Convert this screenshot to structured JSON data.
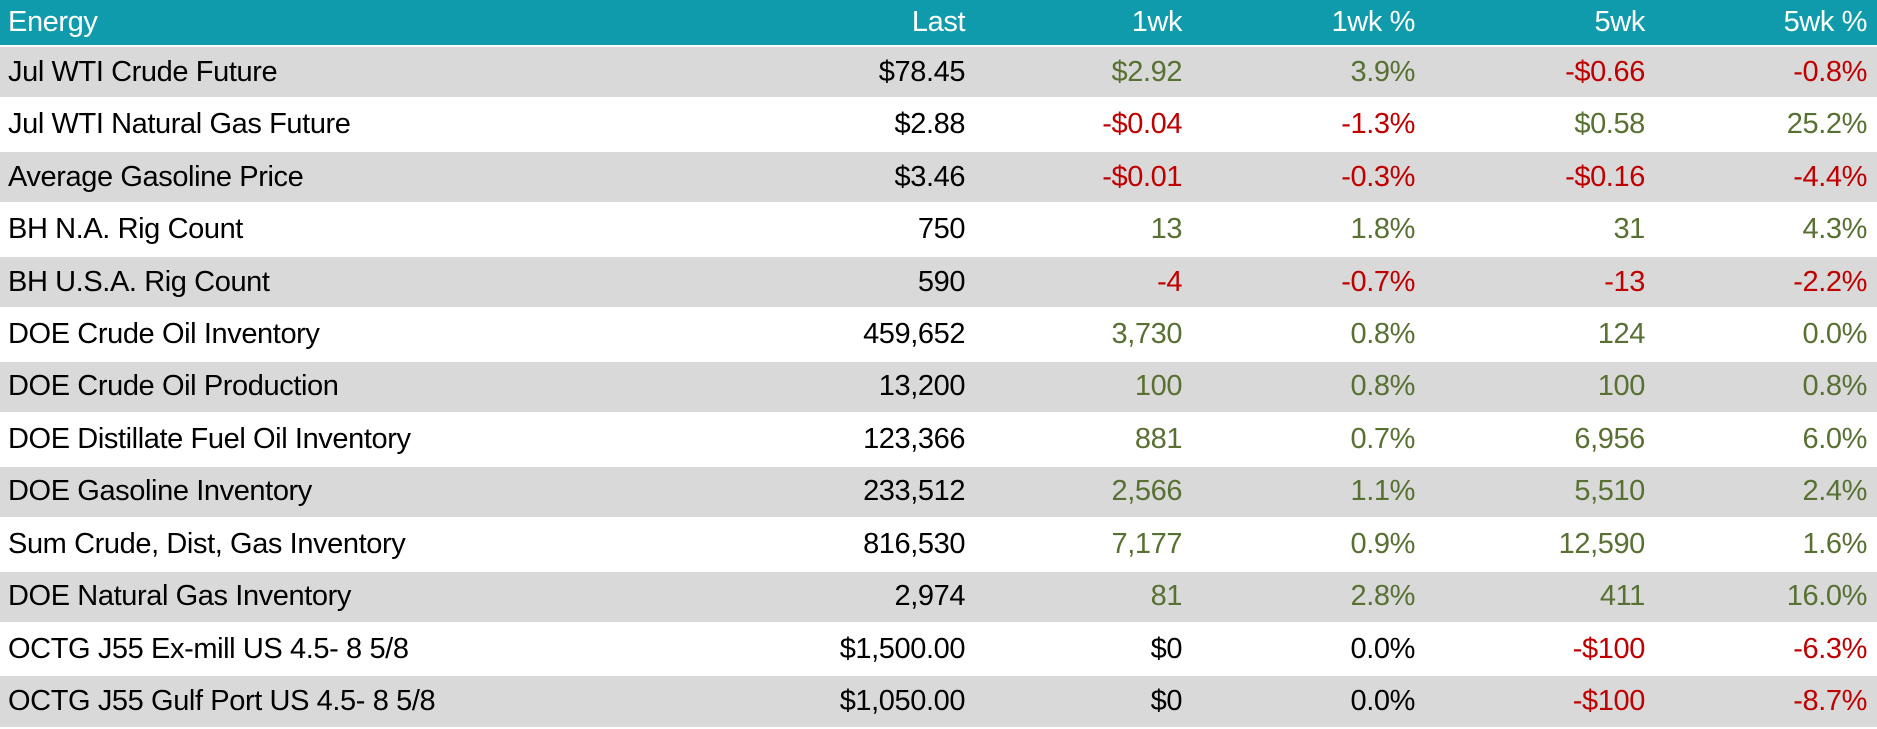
{
  "table": {
    "title": "Energy",
    "columns": [
      "Energy",
      "Last",
      "1wk",
      "1wk %",
      "5wk",
      "5wk %"
    ],
    "colors": {
      "header_bg": "#0F9BAB",
      "header_text": "#FFFFFF",
      "row_shade": "#D9D9D9",
      "positive": "#587133",
      "negative": "#C00000",
      "neutral": "#000000"
    },
    "rows": [
      {
        "label": "Jul WTI Crude Future",
        "values": [
          {
            "text": "$78.45",
            "color": "neutral"
          },
          {
            "text": "$2.92",
            "color": "positive"
          },
          {
            "text": "3.9%",
            "color": "positive"
          },
          {
            "text": "-$0.66",
            "color": "negative"
          },
          {
            "text": "-0.8%",
            "color": "negative"
          }
        ]
      },
      {
        "label": "Jul WTI Natural Gas Future",
        "values": [
          {
            "text": "$2.88",
            "color": "neutral"
          },
          {
            "text": "-$0.04",
            "color": "negative"
          },
          {
            "text": "-1.3%",
            "color": "negative"
          },
          {
            "text": "$0.58",
            "color": "positive"
          },
          {
            "text": "25.2%",
            "color": "positive"
          }
        ]
      },
      {
        "label": "Average Gasoline Price",
        "values": [
          {
            "text": "$3.46",
            "color": "neutral"
          },
          {
            "text": "-$0.01",
            "color": "negative"
          },
          {
            "text": "-0.3%",
            "color": "negative"
          },
          {
            "text": "-$0.16",
            "color": "negative"
          },
          {
            "text": "-4.4%",
            "color": "negative"
          }
        ]
      },
      {
        "label": "BH N.A. Rig Count",
        "values": [
          {
            "text": "750",
            "color": "neutral"
          },
          {
            "text": "13",
            "color": "positive"
          },
          {
            "text": "1.8%",
            "color": "positive"
          },
          {
            "text": "31",
            "color": "positive"
          },
          {
            "text": "4.3%",
            "color": "positive"
          }
        ]
      },
      {
        "label": "BH U.S.A. Rig Count",
        "values": [
          {
            "text": "590",
            "color": "neutral"
          },
          {
            "text": "-4",
            "color": "negative"
          },
          {
            "text": "-0.7%",
            "color": "negative"
          },
          {
            "text": "-13",
            "color": "negative"
          },
          {
            "text": "-2.2%",
            "color": "negative"
          }
        ]
      },
      {
        "label": "DOE Crude Oil Inventory",
        "values": [
          {
            "text": "459,652",
            "color": "neutral"
          },
          {
            "text": "3,730",
            "color": "positive"
          },
          {
            "text": "0.8%",
            "color": "positive"
          },
          {
            "text": "124",
            "color": "positive"
          },
          {
            "text": "0.0%",
            "color": "positive"
          }
        ]
      },
      {
        "label": "DOE Crude Oil Production",
        "values": [
          {
            "text": "13,200",
            "color": "neutral"
          },
          {
            "text": "100",
            "color": "positive"
          },
          {
            "text": "0.8%",
            "color": "positive"
          },
          {
            "text": "100",
            "color": "positive"
          },
          {
            "text": "0.8%",
            "color": "positive"
          }
        ]
      },
      {
        "label": "DOE Distillate Fuel Oil Inventory",
        "values": [
          {
            "text": "123,366",
            "color": "neutral"
          },
          {
            "text": "881",
            "color": "positive"
          },
          {
            "text": "0.7%",
            "color": "positive"
          },
          {
            "text": "6,956",
            "color": "positive"
          },
          {
            "text": "6.0%",
            "color": "positive"
          }
        ]
      },
      {
        "label": "DOE Gasoline Inventory",
        "values": [
          {
            "text": "233,512",
            "color": "neutral"
          },
          {
            "text": "2,566",
            "color": "positive"
          },
          {
            "text": "1.1%",
            "color": "positive"
          },
          {
            "text": "5,510",
            "color": "positive"
          },
          {
            "text": "2.4%",
            "color": "positive"
          }
        ]
      },
      {
        "label": "Sum Crude, Dist, Gas Inventory",
        "values": [
          {
            "text": "816,530",
            "color": "neutral"
          },
          {
            "text": "7,177",
            "color": "positive"
          },
          {
            "text": "0.9%",
            "color": "positive"
          },
          {
            "text": "12,590",
            "color": "positive"
          },
          {
            "text": "1.6%",
            "color": "positive"
          }
        ]
      },
      {
        "label": "DOE Natural Gas Inventory",
        "values": [
          {
            "text": "2,974",
            "color": "neutral"
          },
          {
            "text": "81",
            "color": "positive"
          },
          {
            "text": "2.8%",
            "color": "positive"
          },
          {
            "text": "411",
            "color": "positive"
          },
          {
            "text": "16.0%",
            "color": "positive"
          }
        ]
      },
      {
        "label": "OCTG J55 Ex-mill US 4.5- 8 5/8",
        "values": [
          {
            "text": "$1,500.00",
            "color": "neutral"
          },
          {
            "text": "$0",
            "color": "neutral"
          },
          {
            "text": "0.0%",
            "color": "neutral"
          },
          {
            "text": "-$100",
            "color": "negative"
          },
          {
            "text": "-6.3%",
            "color": "negative"
          }
        ]
      },
      {
        "label": "OCTG J55 Gulf Port US 4.5- 8 5/8",
        "values": [
          {
            "text": "$1,050.00",
            "color": "neutral"
          },
          {
            "text": "$0",
            "color": "neutral"
          },
          {
            "text": "0.0%",
            "color": "neutral"
          },
          {
            "text": "-$100",
            "color": "negative"
          },
          {
            "text": "-8.7%",
            "color": "negative"
          }
        ]
      }
    ]
  },
  "chart_data": {
    "type": "table",
    "title": "Energy",
    "columns": [
      "Energy",
      "Last",
      "1wk",
      "1wk %",
      "5wk",
      "5wk %"
    ],
    "rows": [
      [
        "Jul WTI Crude Future",
        "$78.45",
        "$2.92",
        "3.9%",
        "-$0.66",
        "-0.8%"
      ],
      [
        "Jul WTI Natural Gas Future",
        "$2.88",
        "-$0.04",
        "-1.3%",
        "$0.58",
        "25.2%"
      ],
      [
        "Average Gasoline Price",
        "$3.46",
        "-$0.01",
        "-0.3%",
        "-$0.16",
        "-4.4%"
      ],
      [
        "BH N.A. Rig Count",
        "750",
        "13",
        "1.8%",
        "31",
        "4.3%"
      ],
      [
        "BH U.S.A. Rig Count",
        "590",
        "-4",
        "-0.7%",
        "-13",
        "-2.2%"
      ],
      [
        "DOE Crude Oil Inventory",
        "459,652",
        "3,730",
        "0.8%",
        "124",
        "0.0%"
      ],
      [
        "DOE Crude Oil Production",
        "13,200",
        "100",
        "0.8%",
        "100",
        "0.8%"
      ],
      [
        "DOE Distillate Fuel Oil Inventory",
        "123,366",
        "881",
        "0.7%",
        "6,956",
        "6.0%"
      ],
      [
        "DOE Gasoline Inventory",
        "233,512",
        "2,566",
        "1.1%",
        "5,510",
        "2.4%"
      ],
      [
        "Sum Crude, Dist, Gas Inventory",
        "816,530",
        "7,177",
        "0.9%",
        "12,590",
        "1.6%"
      ],
      [
        "DOE Natural Gas Inventory",
        "2,974",
        "81",
        "2.8%",
        "411",
        "16.0%"
      ],
      [
        "OCTG J55 Ex-mill US 4.5- 8 5/8",
        "$1,500.00",
        "$0",
        "0.0%",
        "-$100",
        "-6.3%"
      ],
      [
        "OCTG J55 Gulf Port US 4.5- 8 5/8",
        "$1,050.00",
        "$0",
        "0.0%",
        "-$100",
        "-8.7%"
      ]
    ]
  }
}
